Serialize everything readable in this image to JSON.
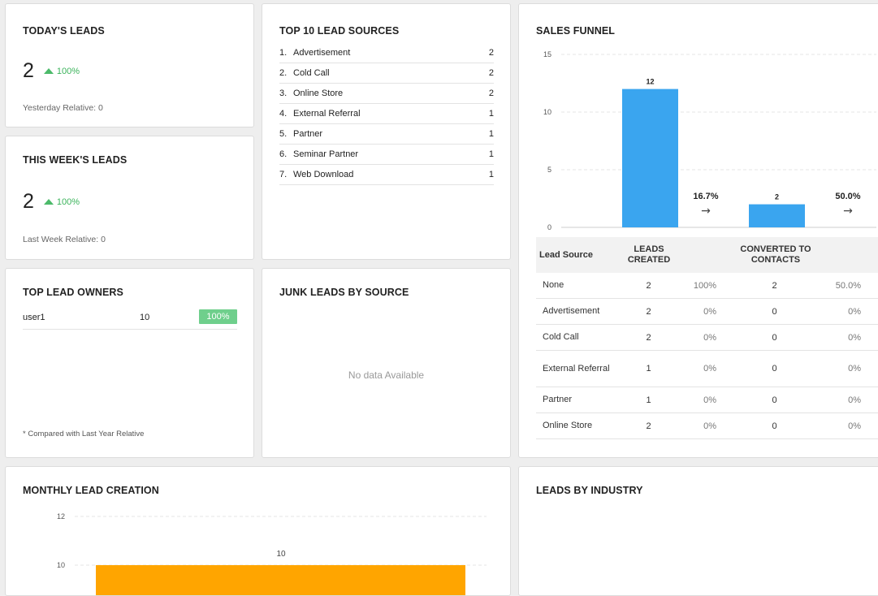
{
  "todays_leads": {
    "title": "TODAY'S LEADS",
    "value": "2",
    "change": "100%",
    "relative": "Yesterday Relative: 0"
  },
  "week_leads": {
    "title": "THIS WEEK'S LEADS",
    "value": "2",
    "change": "100%",
    "relative": "Last Week Relative: 0"
  },
  "lead_sources": {
    "title": "TOP 10 LEAD SOURCES",
    "items": [
      {
        "num": "1.",
        "name": "Advertisement",
        "count": "2"
      },
      {
        "num": "2.",
        "name": "Cold Call",
        "count": "2"
      },
      {
        "num": "3.",
        "name": "Online Store",
        "count": "2"
      },
      {
        "num": "4.",
        "name": "External Referral",
        "count": "1"
      },
      {
        "num": "5.",
        "name": "Partner",
        "count": "1"
      },
      {
        "num": "6.",
        "name": "Seminar Partner",
        "count": "1"
      },
      {
        "num": "7.",
        "name": "Web Download",
        "count": "1"
      }
    ]
  },
  "lead_owners": {
    "title": "TOP LEAD OWNERS",
    "owner": {
      "name": "user1",
      "count": "10",
      "pct": "100%"
    },
    "footnote": "* Compared with Last Year Relative"
  },
  "junk_leads": {
    "title": "JUNK LEADS BY SOURCE",
    "empty": "No data Available"
  },
  "sales_funnel": {
    "title": "SALES FUNNEL",
    "table": {
      "headers": {
        "source": "Lead Source",
        "created": "LEADS CREATED",
        "converted": "CONVERTED TO CONTACTS"
      },
      "rows": [
        {
          "source": "None",
          "created": "2",
          "created_pct": "100%",
          "converted": "2",
          "converted_pct": "50.0%"
        },
        {
          "source": "Advertisement",
          "created": "2",
          "created_pct": "0%",
          "converted": "0",
          "converted_pct": "0%"
        },
        {
          "source": "Cold Call",
          "created": "2",
          "created_pct": "0%",
          "converted": "0",
          "converted_pct": "0%"
        },
        {
          "source": "External Referral",
          "created": "1",
          "created_pct": "0%",
          "converted": "0",
          "converted_pct": "0%"
        },
        {
          "source": "Partner",
          "created": "1",
          "created_pct": "0%",
          "converted": "0",
          "converted_pct": "0%"
        },
        {
          "source": "Online Store",
          "created": "2",
          "created_pct": "0%",
          "converted": "0",
          "converted_pct": "0%"
        }
      ]
    }
  },
  "monthly": {
    "title": "MONTHLY LEAD CREATION"
  },
  "industry": {
    "title": "LEADS BY INDUSTRY"
  },
  "chart_data": [
    {
      "type": "bar",
      "title": "SALES FUNNEL",
      "categories": [
        "",
        ""
      ],
      "values": [
        12,
        2
      ],
      "data_labels": [
        "12",
        "2"
      ],
      "conversion_labels": [
        "16.7%",
        "50.0%"
      ],
      "ylim": [
        0,
        15
      ],
      "yticks": [
        0,
        5,
        10,
        15
      ],
      "grid": true,
      "colors": {
        "bar": "#3aa5ef"
      }
    },
    {
      "type": "bar",
      "title": "MONTHLY LEAD CREATION",
      "categories": [
        ""
      ],
      "values": [
        10
      ],
      "data_labels": [
        "10"
      ],
      "yticks": [
        10,
        12
      ],
      "grid": true,
      "colors": {
        "bar": "#ffa500"
      }
    }
  ]
}
